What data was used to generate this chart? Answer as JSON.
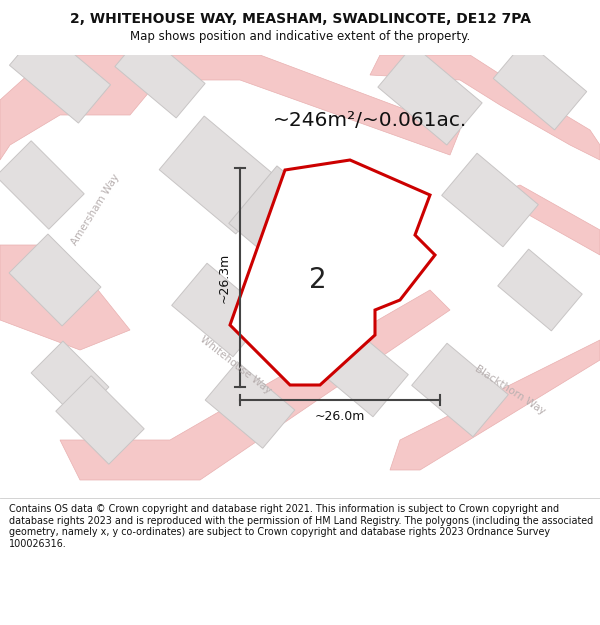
{
  "title": "2, WHITEHOUSE WAY, MEASHAM, SWADLINCOTE, DE12 7PA",
  "subtitle": "Map shows position and indicative extent of the property.",
  "area_label": "~246m²/~0.061ac.",
  "plot_number": "2",
  "width_label": "~26.0m",
  "height_label": "~26.3m",
  "footer": "Contains OS data © Crown copyright and database right 2021. This information is subject to Crown copyright and database rights 2023 and is reproduced with the permission of HM Land Registry. The polygons (including the associated geometry, namely x, y co-ordinates) are subject to Crown copyright and database rights 2023 Ordnance Survey 100026316.",
  "bg_color": "#f2f0f0",
  "plot_fill": "#ffffff",
  "plot_stroke": "#cc0000",
  "dim_color": "#444444",
  "road_color": "#f5c8c8",
  "road_edge": "#e8b0b0",
  "building_fill": "#e2dfdf",
  "building_edge": "#c8c5c5",
  "road_label_color": "#b8b0b0",
  "title_color": "#111111"
}
